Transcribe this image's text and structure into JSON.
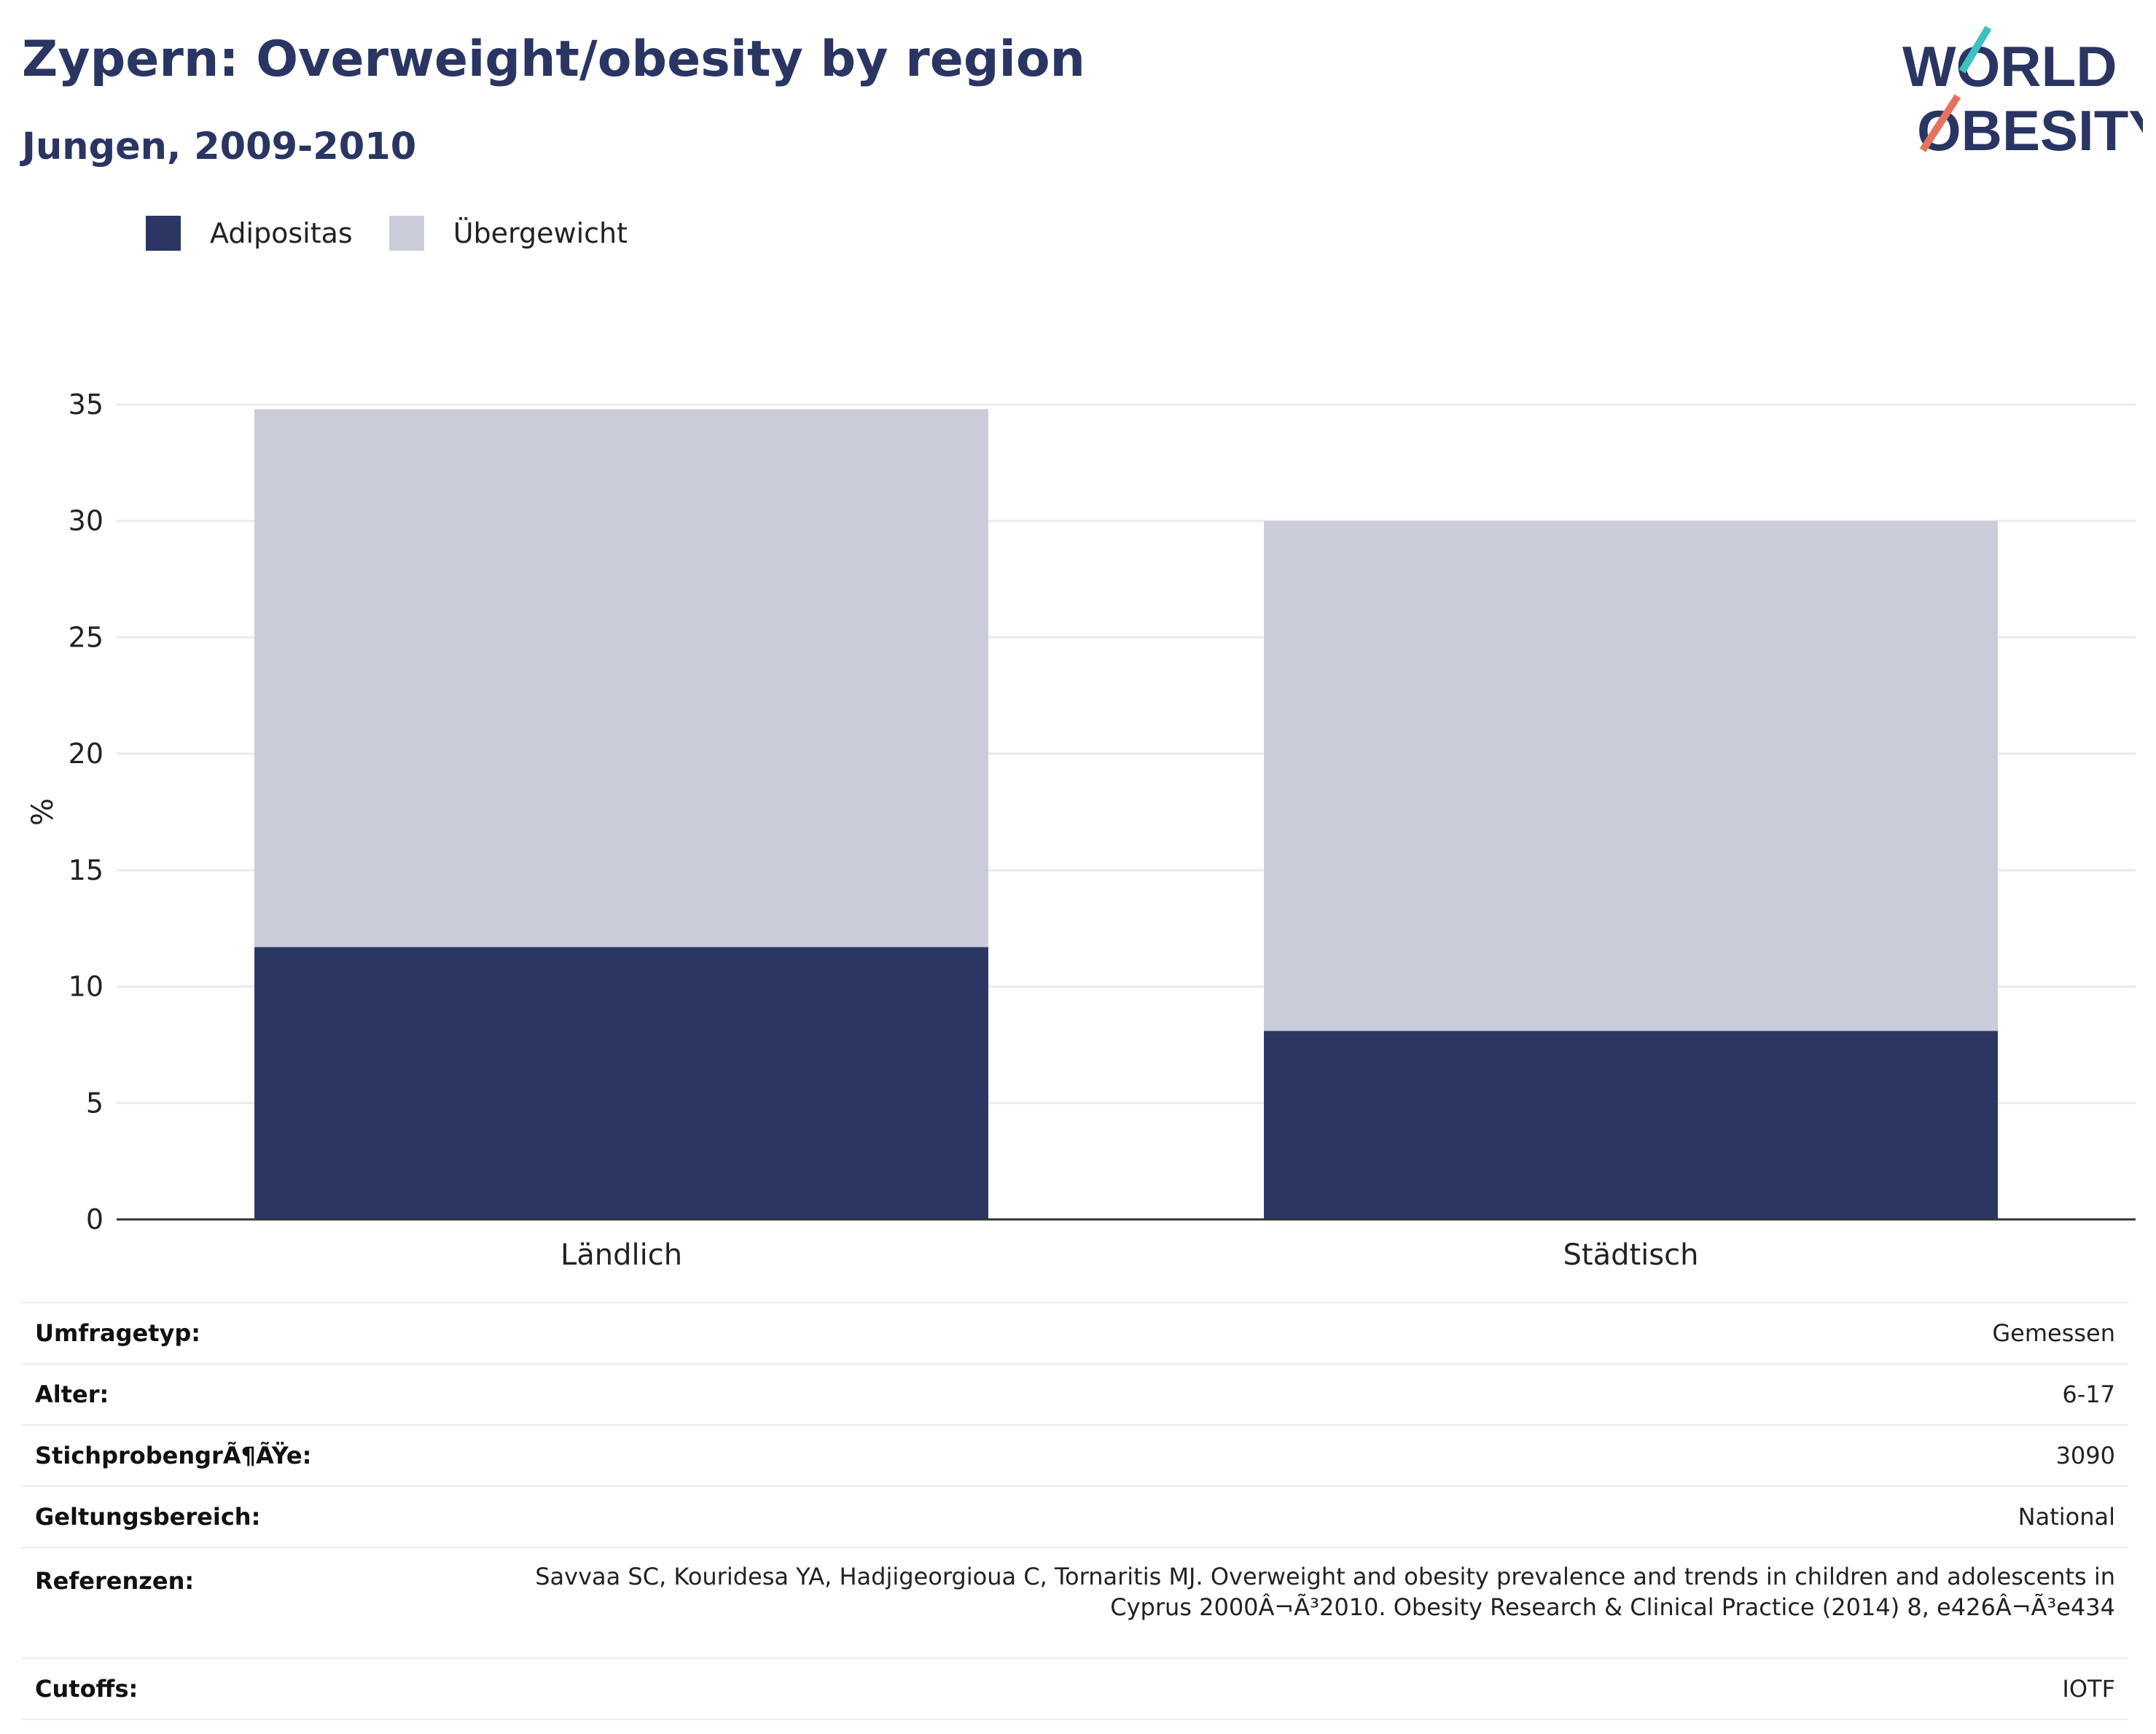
{
  "header": {
    "title": "Zypern: Overweight/obesity by region",
    "subtitle": "Jungen, 2009-2010"
  },
  "logo": {
    "line1": "WORLD",
    "line2": "OBESITY",
    "colors": [
      "#2b3563",
      "#3cc1c0",
      "#e5735f"
    ]
  },
  "legend": {
    "items": [
      {
        "label": "Adipositas",
        "color": "#2b3663"
      },
      {
        "label": "Übergewicht",
        "color": "#cacdd9"
      }
    ]
  },
  "chart_data": {
    "type": "bar",
    "stacked": true,
    "categories": [
      "Ländlich",
      "Städtisch"
    ],
    "series": [
      {
        "name": "Adipositas",
        "values": [
          11.7,
          8.1
        ],
        "color": "#2b3663"
      },
      {
        "name": "Übergewicht",
        "values": [
          23.1,
          21.9
        ],
        "color": "#cacdd9"
      }
    ],
    "ylabel": "%",
    "ylim": [
      0,
      35
    ],
    "yticks": [
      0,
      5,
      10,
      15,
      20,
      25,
      30,
      35
    ],
    "grid": true,
    "legend_position": "top-left"
  },
  "meta": {
    "rows": [
      {
        "key": "Umfragetyp:",
        "value": "Gemessen"
      },
      {
        "key": "Alter:",
        "value": "6-17"
      },
      {
        "key": "StichprobengrÃ¶ÃŸe:",
        "value": "3090"
      },
      {
        "key": "Geltungsbereich:",
        "value": "National"
      },
      {
        "key": "Referenzen:",
        "value": "Savvaa SC, Kouridesa YA, Hadjigeorgioua C, Tornaritis MJ. Overweight and obesity prevalence and trends in children and adolescents in",
        "value2": "Cyprus 2000Â¬Ã³2010. Obesity Research & Clinical Practice (2014) 8, e426Â¬Ã³e434"
      },
      {
        "key": "Cutoffs:",
        "value": "IOTF"
      }
    ]
  }
}
